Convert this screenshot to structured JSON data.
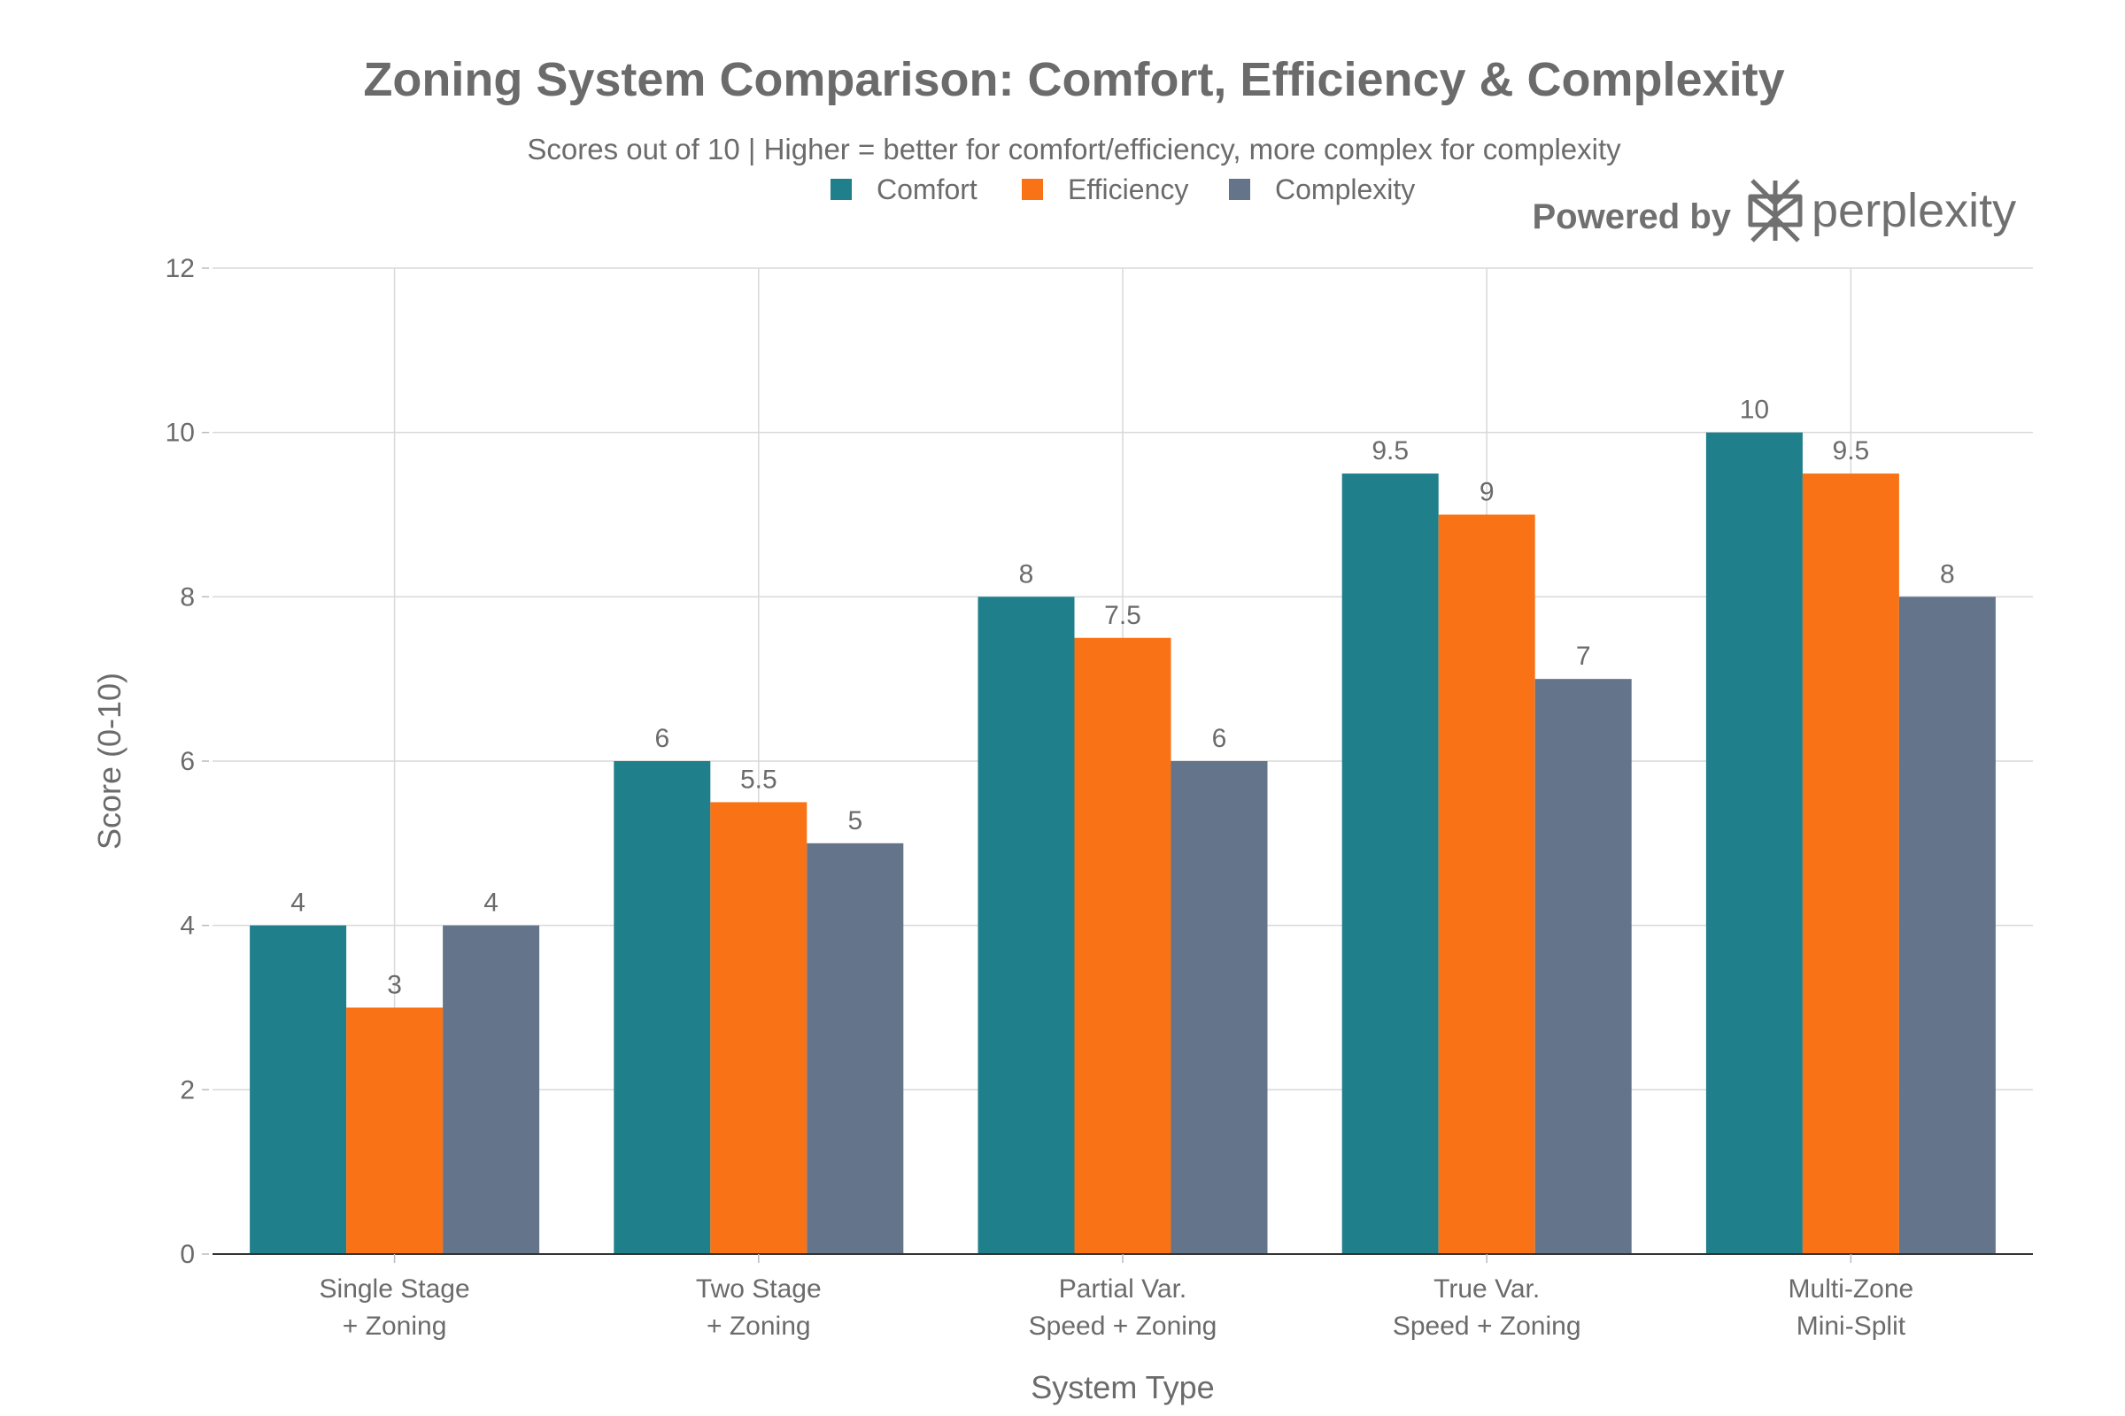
{
  "chart_data": {
    "type": "bar",
    "title": "Zoning System Comparison: Comfort, Efficiency & Complexity",
    "subtitle": "Scores out of 10 | Higher = better for comfort/efficiency, more complex for complexity",
    "xlabel": "System Type",
    "ylabel": "Score (0-10)",
    "ylim": [
      0,
      12
    ],
    "yticks": [
      0,
      2,
      4,
      6,
      8,
      10,
      12
    ],
    "grid": true,
    "legend_position": "top-center",
    "categories": [
      [
        "Single Stage",
        "+ Zoning"
      ],
      [
        "Two Stage",
        "+ Zoning"
      ],
      [
        "Partial Var.",
        "Speed + Zoning"
      ],
      [
        "True Var.",
        "Speed + Zoning"
      ],
      [
        "Multi-Zone",
        "Mini-Split"
      ]
    ],
    "series": [
      {
        "name": "Comfort",
        "color": "#1f7f8a",
        "values": [
          4,
          6,
          8,
          9.5,
          10
        ]
      },
      {
        "name": "Efficiency",
        "color": "#f97316",
        "values": [
          3,
          5.5,
          7.5,
          9,
          9.5
        ]
      },
      {
        "name": "Complexity",
        "color": "#64748b",
        "values": [
          4,
          5,
          6,
          7,
          8
        ]
      }
    ]
  },
  "watermark": {
    "prefix": "Powered by",
    "brand": "perplexity",
    "icon": "perplexity-logo-icon"
  }
}
